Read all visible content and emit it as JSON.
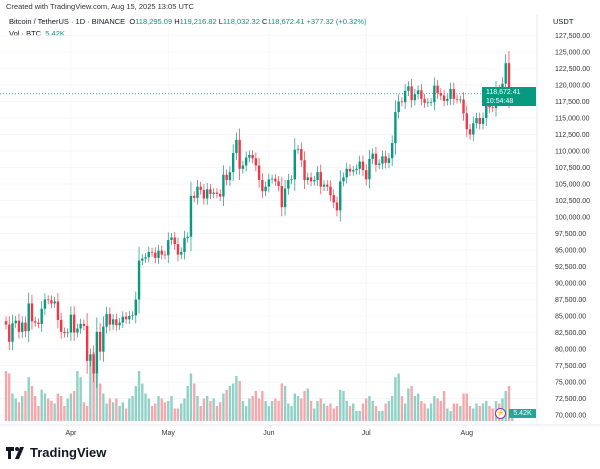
{
  "header": {
    "created": "Created with TradingView.com, Aug 15, 2025 13:05 UTC",
    "symbol": "Bitcoin / TetherUS · 1D · BINANCE",
    "o_label": "O",
    "o": "118,295.09",
    "h_label": "H",
    "h": "119,216.82",
    "l_label": "L",
    "l": "118,032.32",
    "c_label": "C",
    "c": "118,672.41",
    "change": "+377.32 (+0.32%)",
    "vol_label": "Vol · BTC",
    "vol": "5.42K"
  },
  "axis": {
    "currency": "USDT",
    "price_tag": "118,672.41",
    "countdown": "10:54:48",
    "vol_tag": "5.42K"
  },
  "brand": {
    "name": "TradingView"
  },
  "colors": {
    "up": "#089981",
    "down": "#f23645",
    "accent": "#089981",
    "vol_up": "#8fd1c6",
    "vol_down": "#f7a7ab"
  },
  "chart_data": {
    "type": "candlestick",
    "interval": "1D",
    "x_start": "2025-03-12",
    "x_end": "2025-08-15",
    "x_tick_labels": [
      "Apr",
      "May",
      "Jun",
      "Jul",
      "Aug"
    ],
    "ylim": [
      70000,
      127500
    ],
    "y_ticks": [
      "127,500.00",
      "125,000.00",
      "122,500.00",
      "120,000.00",
      "117,500.00",
      "115,000.00",
      "112,500.00",
      "110,000.00",
      "107,500.00",
      "105,000.00",
      "102,500.00",
      "100,000.00",
      "97,500.00",
      "95,000.00",
      "92,500.00",
      "90,000.00",
      "87,500.00",
      "85,000.00",
      "82,500.00",
      "80,000.00",
      "77,500.00",
      "75,000.00",
      "72,500.00",
      "70,000.00"
    ],
    "y_tick_values": [
      127500,
      125000,
      122500,
      120000,
      117500,
      115000,
      112500,
      110000,
      107500,
      105000,
      102500,
      100000,
      97500,
      95000,
      92500,
      90000,
      87500,
      85000,
      82500,
      80000,
      77500,
      75000,
      72500,
      70000
    ],
    "last_price": 118672.41,
    "close_k": [
      83.7,
      81.1,
      83.9,
      84.3,
      82.6,
      84.0,
      82.7,
      86.9,
      84.2,
      84.0,
      83.8,
      86.1,
      87.5,
      87.4,
      86.9,
      87.2,
      84.4,
      82.6,
      82.4,
      82.5,
      85.2,
      82.5,
      83.1,
      83.8,
      83.5,
      78.2,
      79.2,
      76.3,
      82.6,
      79.6,
      83.4,
      85.3,
      83.7,
      84.5,
      83.6,
      84.0,
      84.9,
      84.5,
      85.0,
      85.1,
      87.5,
      93.4,
      93.7,
      93.9,
      94.7,
      94.6,
      93.8,
      94.9,
      94.3,
      94.2,
      96.5,
      96.9,
      95.9,
      94.3,
      94.7,
      96.8,
      97.0,
      103.2,
      102.9,
      104.6,
      104.1,
      102.8,
      104.2,
      103.5,
      103.7,
      103.5,
      103.1,
      106.4,
      105.6,
      106.8,
      109.7,
      111.7,
      107.3,
      107.8,
      109.0,
      109.4,
      108.9,
      107.8,
      105.6,
      103.9,
      104.6,
      105.7,
      105.8,
      105.4,
      104.7,
      101.5,
      104.3,
      105.6,
      105.7,
      110.2,
      110.3,
      108.6,
      105.6,
      106.0,
      105.4,
      105.6,
      106.8,
      104.6,
      104.9,
      104.6,
      103.3,
      102.2,
      101.0,
      105.4,
      106.0,
      107.3,
      106.9,
      107.1,
      107.3,
      108.4,
      107.1,
      105.7,
      108.8,
      109.6,
      107.9,
      108.1,
      109.2,
      108.2,
      108.9,
      111.2,
      115.9,
      117.5,
      117.4,
      119.1,
      119.8,
      117.7,
      118.6,
      119.2,
      117.9,
      117.3,
      117.4,
      117.4,
      119.9,
      118.8,
      118.4,
      117.6,
      117.9,
      119.4,
      117.9,
      117.8,
      117.8,
      115.7,
      113.3,
      112.5,
      114.2,
      115.0,
      114.1,
      115.0,
      117.5,
      116.6,
      116.5,
      119.3,
      118.7,
      120.2,
      123.3,
      118.3,
      118.672
    ],
    "volume_k": [
      40,
      38,
      22,
      18,
      15,
      20,
      24,
      35,
      28,
      20,
      12,
      25,
      22,
      18,
      16,
      14,
      22,
      20,
      12,
      18,
      22,
      24,
      40,
      35,
      15,
      12,
      48,
      55,
      50,
      30,
      22,
      14,
      18,
      15,
      18,
      12,
      15,
      10,
      18,
      20,
      28,
      40,
      30,
      22,
      18,
      12,
      14,
      20,
      18,
      15,
      16,
      20,
      10,
      10,
      14,
      18,
      28,
      38,
      30,
      20,
      12,
      18,
      20,
      16,
      18,
      12,
      15,
      22,
      25,
      28,
      30,
      36,
      32,
      16,
      12,
      18,
      20,
      24,
      18,
      24,
      16,
      12,
      16,
      18,
      16,
      30,
      28,
      14,
      12,
      22,
      20,
      18,
      24,
      26,
      16,
      10,
      16,
      18,
      14,
      12,
      14,
      10,
      12,
      25,
      24,
      16,
      12,
      14,
      8,
      8,
      14,
      18,
      20,
      16,
      12,
      8,
      8,
      14,
      16,
      20,
      35,
      38,
      20,
      14,
      26,
      28,
      20,
      22,
      16,
      14,
      10,
      14,
      20,
      18,
      16,
      24,
      10,
      8,
      14,
      14,
      12,
      22,
      22,
      12,
      10,
      14,
      12,
      14,
      16,
      12,
      10,
      16,
      14,
      18,
      24,
      28,
      5.42
    ]
  }
}
